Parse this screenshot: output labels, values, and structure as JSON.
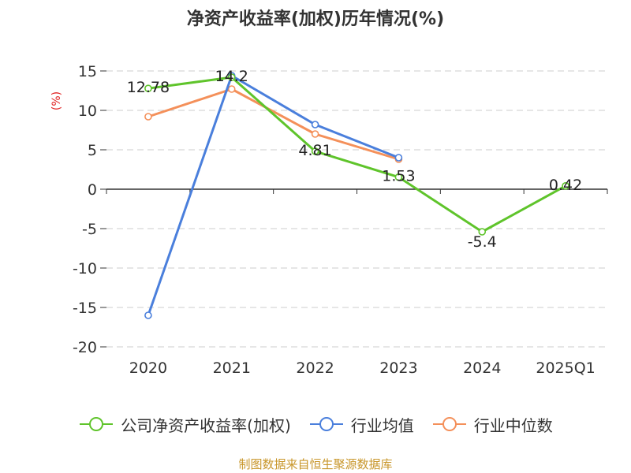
{
  "chart_data": {
    "type": "line",
    "title": "净资产收益率(加权)历年情况(%)",
    "ylabel": "(%)",
    "xlabel": "",
    "categories": [
      "2020",
      "2021",
      "2022",
      "2023",
      "2024",
      "2025Q1"
    ],
    "ylim": [
      -20,
      15
    ],
    "yticks": [
      15,
      10,
      5,
      0,
      -5,
      -10,
      -15,
      -20
    ],
    "grid": true,
    "legend_position": "bottom",
    "series": [
      {
        "name": "公司净资产收益率(加权)",
        "color": "#5fc42b",
        "values": [
          12.78,
          14.2,
          4.81,
          1.53,
          -5.4,
          0.42
        ],
        "labels": [
          "12.78",
          "14.2",
          "4.81",
          "1.53",
          "-5.4",
          "0.42"
        ]
      },
      {
        "name": "行业均值",
        "color": "#4a7fdc",
        "values": [
          -16.0,
          14.4,
          8.2,
          4.0,
          null,
          null
        ],
        "labels": null
      },
      {
        "name": "行业中位数",
        "color": "#f4905a",
        "values": [
          9.2,
          12.7,
          7.0,
          3.8,
          null,
          null
        ],
        "labels": null
      }
    ]
  },
  "source": "制图数据来自恒生聚源数据库"
}
